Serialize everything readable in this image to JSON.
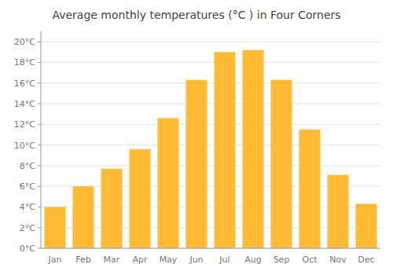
{
  "chart_data": {
    "type": "bar",
    "title": "Average monthly temperatures (°C ) in Four Corners",
    "categories": [
      "Jan",
      "Feb",
      "Mar",
      "Apr",
      "May",
      "Jun",
      "Jul",
      "Aug",
      "Sep",
      "Oct",
      "Nov",
      "Dec"
    ],
    "values": [
      4.0,
      6.0,
      7.7,
      9.6,
      12.6,
      16.3,
      19.0,
      19.2,
      16.3,
      11.5,
      7.1,
      4.3
    ],
    "color": "#FFBB33",
    "ylim": [
      0,
      21
    ],
    "yticks": [
      {
        "value": 0,
        "label": "0°C"
      },
      {
        "value": 2,
        "label": "2°C"
      },
      {
        "value": 4,
        "label": "4°C"
      },
      {
        "value": 6,
        "label": "6°C"
      },
      {
        "value": 8,
        "label": "8°C"
      },
      {
        "value": 10,
        "label": "10°C"
      },
      {
        "value": 12,
        "label": "12°C"
      },
      {
        "value": 14,
        "label": "14°C"
      },
      {
        "value": 16,
        "label": "16°C"
      },
      {
        "value": 18,
        "label": "18°C"
      },
      {
        "value": 20,
        "label": "20°C"
      }
    ],
    "grid": true
  }
}
